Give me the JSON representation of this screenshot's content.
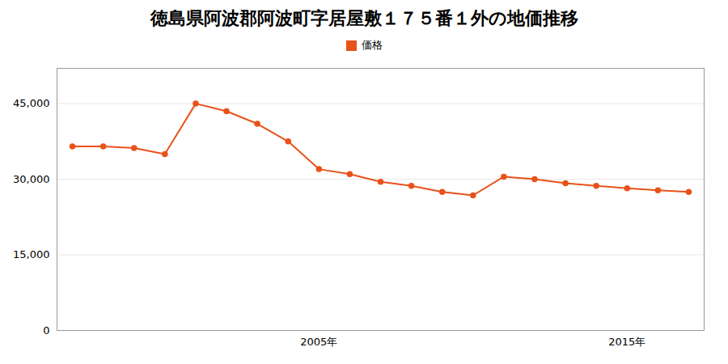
{
  "chart_data": {
    "type": "line",
    "title": "徳島県阿波郡阿波町字居屋敷１７５番１外の地価推移",
    "x": [
      1997,
      1998,
      1999,
      2000,
      2001,
      2002,
      2003,
      2004,
      2005,
      2006,
      2007,
      2008,
      2009,
      2010,
      2011,
      2012,
      2013,
      2014,
      2015,
      2016,
      2017
    ],
    "series": [
      {
        "name": "価格",
        "color": "#e8521a",
        "marker": "circle",
        "values": [
          36500,
          36500,
          36200,
          35000,
          45000,
          43500,
          41000,
          37500,
          32000,
          31000,
          29500,
          28700,
          27500,
          26800,
          30500,
          30000,
          29200,
          28700,
          28200,
          27800,
          27500
        ]
      }
    ],
    "xlim": [
      1996.5,
      2017.5
    ],
    "xticks": [
      {
        "value": 2005,
        "label": "2005年"
      },
      {
        "value": 2015,
        "label": "2015年"
      }
    ],
    "ylim": [
      0,
      52000
    ],
    "yticks": [
      0,
      {
        "value": 15000,
        "label": "15,000"
      },
      {
        "value": 30000,
        "label": "30,000"
      },
      {
        "value": 45000,
        "label": "45,000"
      }
    ],
    "grid": true,
    "legend": "top"
  }
}
